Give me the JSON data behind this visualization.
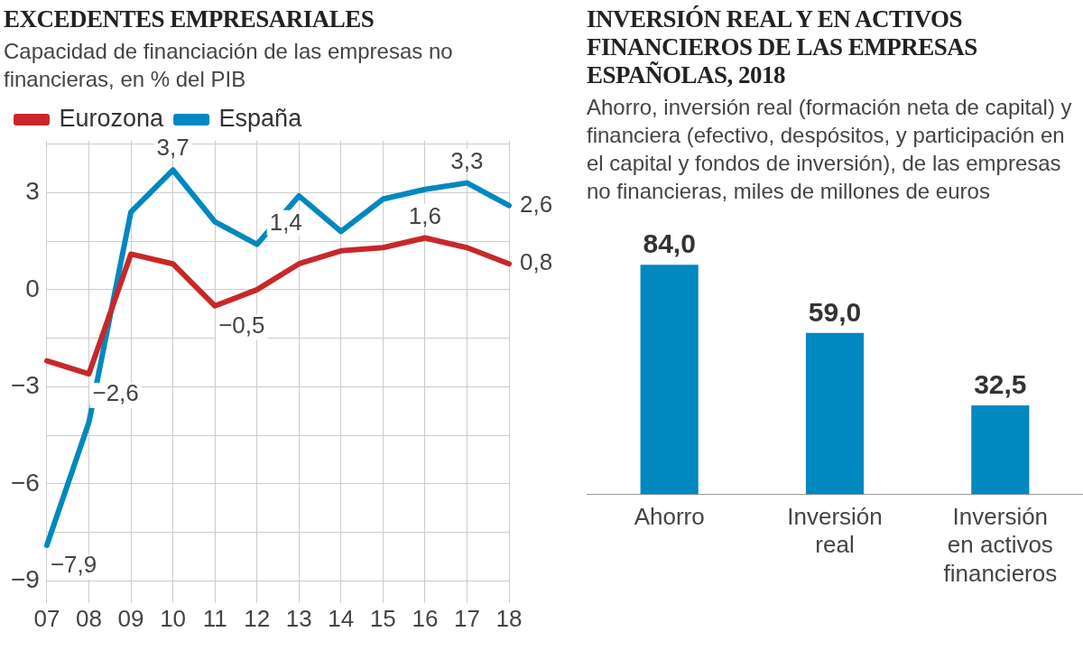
{
  "chart_data": [
    {
      "type": "line",
      "title": "EXCEDENTES EMPRESARIALES",
      "subtitle": "Capacidad de financiación de las empresas no financieras, en % del PIB",
      "categories": [
        "07",
        "08",
        "09",
        "10",
        "11",
        "12",
        "13",
        "14",
        "15",
        "16",
        "17",
        "18"
      ],
      "series": [
        {
          "name": "Eurozona",
          "color": "#c8282a",
          "values": [
            -2.2,
            -2.6,
            1.1,
            0.8,
            -0.5,
            0.0,
            0.8,
            1.2,
            1.3,
            1.6,
            1.3,
            0.8
          ],
          "value_labels": [
            null,
            "−2,6",
            null,
            null,
            "−0,5",
            null,
            null,
            null,
            null,
            "1,6",
            null,
            "0,8"
          ]
        },
        {
          "name": "España",
          "color": "#0088c0",
          "values": [
            -7.9,
            -4.1,
            2.4,
            3.7,
            2.1,
            1.4,
            2.9,
            1.8,
            2.8,
            3.1,
            3.3,
            2.6
          ],
          "value_labels": [
            "−7,9",
            null,
            null,
            "3,7",
            null,
            "1,4",
            null,
            null,
            null,
            null,
            "3,3",
            "2,6"
          ]
        }
      ],
      "ylim": [
        -9.4,
        4.6
      ],
      "yticks": [
        {
          "value": -9,
          "label": "−9"
        },
        {
          "value": -7.5,
          "label": null
        },
        {
          "value": -6,
          "label": "−6"
        },
        {
          "value": -4.5,
          "label": null
        },
        {
          "value": -3,
          "label": "−3"
        },
        {
          "value": -1.5,
          "label": null
        },
        0,
        {
          "value": 1.5,
          "label": null
        },
        3,
        {
          "value": 4.5,
          "label": null
        }
      ],
      "grid": true,
      "legend": "top left",
      "marker": "none",
      "line_style": "solid"
    },
    {
      "type": "bar",
      "title": "INVERSIÓN REAL Y EN ACTIVOS FINANCIEROS DE LAS EMPRESAS ESPAÑOLAS, 2018",
      "subtitle": "Ahorro, inversión real (formación neta de capital) y financiera (efectivo, despósitos, y participación en el capital y fondos de inversión), de las empresas no financieras, miles de millones de euros",
      "categories": [
        "Ahorro",
        "Inversión real",
        "Inversión en activos financieros"
      ],
      "values": [
        84.0,
        59.0,
        32.5
      ],
      "color": "#0088c0",
      "value_labels": [
        "84,0",
        "59,0",
        "32,5"
      ],
      "tick_labels": "x",
      "grid": false,
      "legend": false
    }
  ]
}
